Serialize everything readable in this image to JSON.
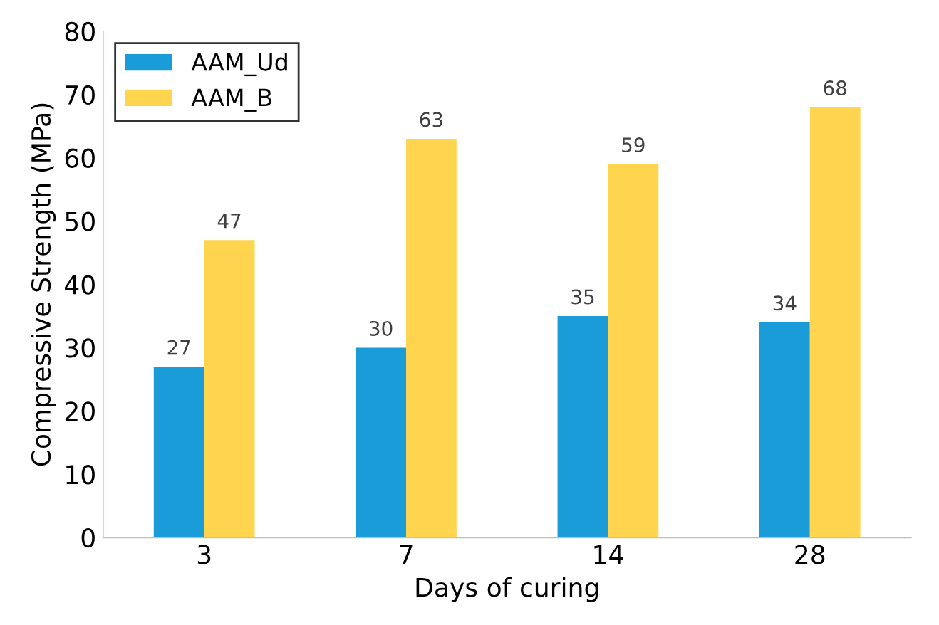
{
  "chart_data": {
    "type": "bar",
    "xlabel": "Days of curing",
    "ylabel": "Compressive Strength (MPa)",
    "categories": [
      "3",
      "7",
      "14",
      "28"
    ],
    "series": [
      {
        "name": "AAM_Ud",
        "color": "#1a9cd8",
        "values": [
          27,
          30,
          35,
          34
        ]
      },
      {
        "name": "AAM_B",
        "color": "#ffd54f",
        "values": [
          47,
          63,
          59,
          68
        ]
      }
    ],
    "ylim": [
      0,
      80
    ],
    "yticks": [
      0,
      10,
      20,
      30,
      40,
      50,
      60,
      70,
      80
    ],
    "grid": false,
    "legend": "top left",
    "data_labels": true
  }
}
